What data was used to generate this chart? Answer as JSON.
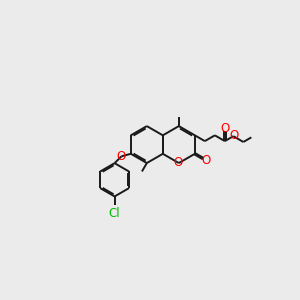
{
  "background_color": "#ebebeb",
  "bond_color": "#1a1a1a",
  "oxygen_color": "#ff0000",
  "chlorine_color": "#00bb00",
  "line_width": 1.4,
  "figsize": [
    3.0,
    3.0
  ],
  "dpi": 100,
  "xlim": [
    0,
    10
  ],
  "ylim": [
    0,
    10
  ]
}
